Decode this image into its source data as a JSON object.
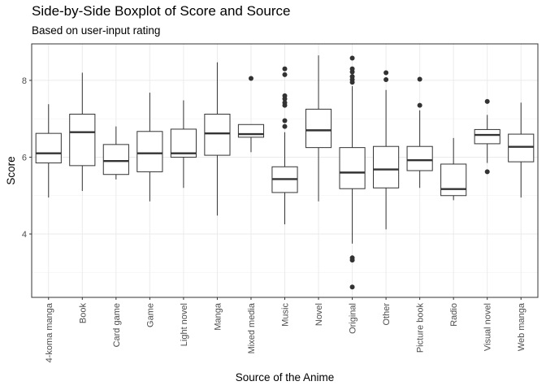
{
  "chart_data": {
    "type": "boxplot",
    "title": "Side-by-Side Boxplot of Score and Source",
    "subtitle": "Based on user-input rating",
    "xlabel": "Source of the Anime",
    "ylabel": "Score",
    "ylim": [
      2.35,
      8.95
    ],
    "yticks": [
      4,
      6,
      8
    ],
    "grid": true,
    "categories": [
      "4-koma manga",
      "Book",
      "Card game",
      "Game",
      "Light novel",
      "Manga",
      "Mixed media",
      "Music",
      "Novel",
      "Original",
      "Other",
      "Picture book",
      "Radio",
      "Visual novel",
      "Web manga"
    ],
    "boxes": [
      {
        "category": "4-koma manga",
        "min": 4.95,
        "q1": 5.85,
        "median": 6.1,
        "q3": 6.62,
        "max": 7.38,
        "outliers": []
      },
      {
        "category": "Book",
        "min": 5.12,
        "q1": 5.78,
        "median": 6.65,
        "q3": 7.12,
        "max": 8.2,
        "outliers": []
      },
      {
        "category": "Card game",
        "min": 5.42,
        "q1": 5.55,
        "median": 5.9,
        "q3": 6.33,
        "max": 6.8,
        "outliers": []
      },
      {
        "category": "Game",
        "min": 4.85,
        "q1": 5.62,
        "median": 6.1,
        "q3": 6.67,
        "max": 7.68,
        "outliers": []
      },
      {
        "category": "Light novel",
        "min": 5.2,
        "q1": 6.0,
        "median": 6.1,
        "q3": 6.73,
        "max": 7.48,
        "outliers": []
      },
      {
        "category": "Manga",
        "min": 4.48,
        "q1": 6.05,
        "median": 6.62,
        "q3": 7.12,
        "max": 8.47,
        "outliers": []
      },
      {
        "category": "Mixed media",
        "min": 6.13,
        "q1": 6.52,
        "median": 6.6,
        "q3": 6.85,
        "max": 6.85,
        "outliers": [
          8.05
        ]
      },
      {
        "category": "Music",
        "min": 4.25,
        "q1": 5.08,
        "median": 5.43,
        "q3": 5.75,
        "max": 6.65,
        "outliers": [
          8.3,
          8.15,
          7.6,
          7.52,
          7.42,
          7.35,
          6.95,
          6.8
        ]
      },
      {
        "category": "Novel",
        "min": 4.85,
        "q1": 6.25,
        "median": 6.7,
        "q3": 7.25,
        "max": 8.65,
        "outliers": []
      },
      {
        "category": "Original",
        "min": 3.75,
        "q1": 5.18,
        "median": 5.6,
        "q3": 6.25,
        "max": 7.85,
        "outliers": [
          8.58,
          8.3,
          8.22,
          8.1,
          8.02,
          7.95,
          3.38,
          3.32,
          2.62
        ]
      },
      {
        "category": "Other",
        "min": 4.12,
        "q1": 5.2,
        "median": 5.68,
        "q3": 6.28,
        "max": 7.75,
        "outliers": [
          8.2,
          8.02
        ]
      },
      {
        "category": "Picture book",
        "min": 5.2,
        "q1": 5.65,
        "median": 5.92,
        "q3": 6.28,
        "max": 7.22,
        "outliers": [
          8.03,
          7.35
        ]
      },
      {
        "category": "Radio",
        "min": 4.88,
        "q1": 5.0,
        "median": 5.17,
        "q3": 5.82,
        "max": 6.5,
        "outliers": []
      },
      {
        "category": "Visual novel",
        "min": 5.85,
        "q1": 6.35,
        "median": 6.58,
        "q3": 6.72,
        "max": 7.1,
        "outliers": [
          7.45,
          5.62
        ]
      },
      {
        "category": "Web manga",
        "min": 4.95,
        "q1": 5.88,
        "median": 6.27,
        "q3": 6.6,
        "max": 7.42,
        "outliers": []
      }
    ]
  }
}
